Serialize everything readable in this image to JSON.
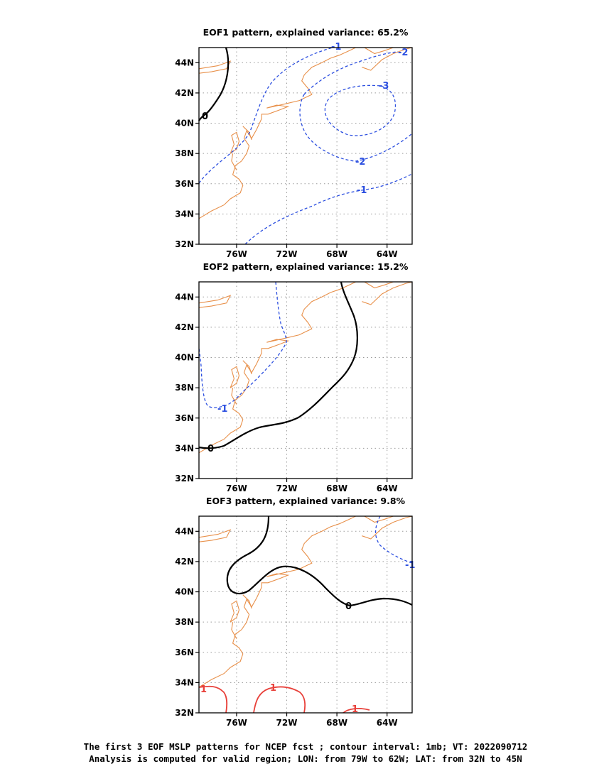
{
  "panels": [
    {
      "title": "EOF1 pattern, explained variance: 65.2%"
    },
    {
      "title": "EOF2 pattern, explained variance: 15.2%"
    },
    {
      "title": "EOF3 pattern, explained variance: 9.8%"
    }
  ],
  "axes": {
    "lat_labels": [
      "44N",
      "42N",
      "40N",
      "38N",
      "36N",
      "34N",
      "32N"
    ],
    "lon_labels": [
      "76W",
      "72W",
      "68W",
      "64W"
    ]
  },
  "contour_labels": {
    "p1": [
      "-1",
      "-2",
      "-3",
      "-2",
      "-1",
      "0"
    ],
    "p2": [
      "-1",
      "0"
    ],
    "p3": [
      "-1",
      "0",
      "1",
      "1",
      "1"
    ]
  },
  "colors": {
    "coast": "#e8904a",
    "negative": "#2c4fe0",
    "zero": "#000000",
    "positive": "#e8403a",
    "grid": "#9a9a9a"
  },
  "caption": {
    "line1": "The first 3 EOF MSLP patterns for NCEP fcst ; contour interval: 1mb; VT: 2022090712",
    "line2": "Analysis is computed for valid region; LON: from 79W to 62W; LAT: from 32N to 45N"
  }
}
